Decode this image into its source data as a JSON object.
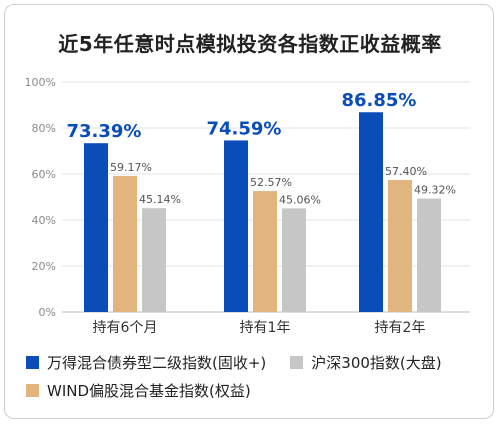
{
  "chart_data": {
    "type": "bar",
    "title": "近5年任意时点模拟投资各指数正收益概率",
    "categories": [
      "持有6个月",
      "持有1年",
      "持有2年"
    ],
    "series": [
      {
        "name": "万得混合债券型二级指数(固收+)",
        "color": "#0a4db8",
        "values": [
          73.39,
          74.59,
          86.85
        ],
        "labels": [
          "73.39%",
          "74.59%",
          "86.85%"
        ]
      },
      {
        "name": "WIND偏股混合基金指数(权益)",
        "color": "#e2b47e",
        "values": [
          59.17,
          52.57,
          57.4
        ],
        "labels": [
          "59.17%",
          "52.57%",
          "57.40%"
        ]
      },
      {
        "name": "沪深300指数(大盘)",
        "color": "#c6c6c6",
        "values": [
          45.14,
          45.06,
          49.32
        ],
        "labels": [
          "45.14%",
          "45.06%",
          "49.32%"
        ]
      }
    ],
    "yticks": [
      "0%",
      "20%",
      "40%",
      "60%",
      "80%",
      "100%"
    ],
    "ylim": [
      0,
      100
    ],
    "grid": true,
    "legend_position": "bottom"
  }
}
